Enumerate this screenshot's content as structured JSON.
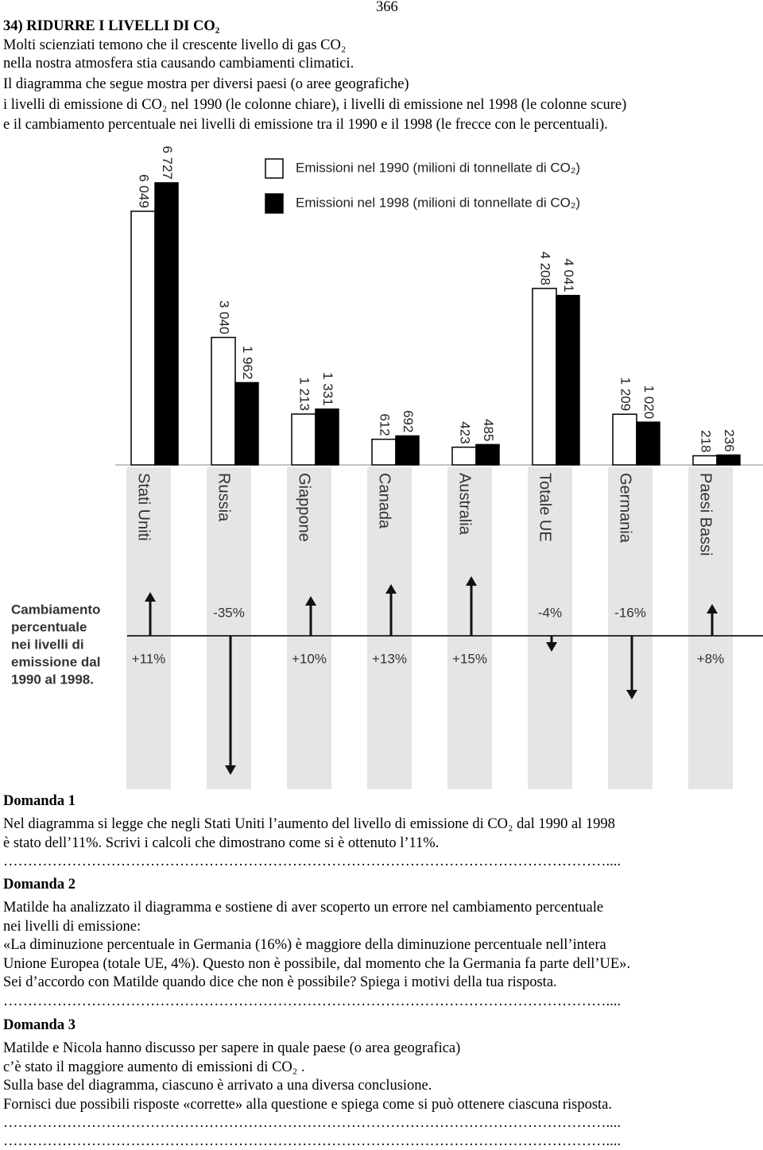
{
  "page_number": "366",
  "title": "34) RIDURRE I LIVELLI DI CO₂",
  "intro": [
    "Molti scienziati temono che il crescente livello di gas CO₂",
    "nella nostra atmosfera stia causando cambiamenti climatici.",
    "Il diagramma che segue mostra per diversi paesi (o aree geografiche)",
    "i livelli di emissione di CO₂ nel 1990 (le colonne chiare), i livelli di emissione nel 1998 (le colonne scure)",
    "e il cambiamento percentuale nei livelli di emissione tra il 1990 e il 1998 (le frecce con le percentuali)."
  ],
  "chart_data": {
    "type": "bar",
    "categories": [
      "Stati Uniti",
      "Russia",
      "Giappone",
      "Canada",
      "Australia",
      "Totale UE",
      "Germania",
      "Paesi Bassi"
    ],
    "series": [
      {
        "name": "Emissioni nel 1990 (milioni di tonnellate di CO₂)",
        "color": "#ffffff",
        "values": [
          6049,
          3040,
          1213,
          612,
          423,
          4208,
          1209,
          218
        ],
        "value_labels": [
          "6 049",
          "3 040",
          "1 213",
          "612",
          "423",
          "4 208",
          "1 209",
          "218"
        ]
      },
      {
        "name": "Emissioni nel 1998 (milioni di tonnellate di CO₂)",
        "color": "#000000",
        "values": [
          6727,
          1962,
          1331,
          692,
          485,
          4041,
          1020,
          236
        ],
        "value_labels": [
          "6 727",
          "1 962",
          "1 331",
          "692",
          "485",
          "4 041",
          "1 020",
          "236"
        ]
      }
    ],
    "change_label": [
      "Cambiamento",
      "percentuale",
      "nei livelli di",
      "emissione dal",
      "1990 al 1998."
    ],
    "changes": {
      "values": [
        11,
        -35,
        10,
        13,
        15,
        -4,
        -16,
        8
      ],
      "value_labels": [
        "+11%",
        "-35%",
        "+10%",
        "+13%",
        "+15%",
        "-4%",
        "-16%",
        "+8%"
      ]
    }
  },
  "questions": [
    {
      "title": "Domanda 1",
      "lines": [
        "Nel diagramma si legge che negli Stati Uniti l’aumento del livello di emissione di CO₂ dal 1990 al 1998",
        "è stato dell’11%. Scrivi i calcoli che dimostrano come si è ottenuto l’11%."
      ],
      "dots": [
        "……………………………………………………………………………………………………………...."
      ]
    },
    {
      "title": "Domanda 2",
      "lines": [
        "Matilde ha analizzato il diagramma e sostiene di aver scoperto un errore nel cambiamento percentuale",
        "nei livelli di emissione:",
        "«La diminuzione percentuale in Germania (16%) è maggiore della diminuzione percentuale nell’intera",
        "Unione Europea (totale UE, 4%). Questo non è possibile, dal momento che la Germania fa parte dell’UE».",
        "Sei d’accordo con Matilde quando dice che non è possibile? Spiega i motivi della tua risposta."
      ],
      "dots": [
        "……………………………………………………………………………………………………………...."
      ]
    },
    {
      "title": "Domanda 3",
      "lines": [
        "Matilde e Nicola hanno discusso per sapere in quale paese (o area geografica)",
        "c’è stato il maggiore aumento di emissioni di CO₂ .",
        "Sulla base del diagramma, ciascuno è arrivato a una diversa conclusione.",
        "Fornisci due possibili risposte «corrette» alla questione e spiega come si può ottenere ciascuna risposta."
      ],
      "dots": [
        "……………………………………………………………………………………………………………....",
        "……………………………………………………………………………………………………………...."
      ]
    }
  ]
}
